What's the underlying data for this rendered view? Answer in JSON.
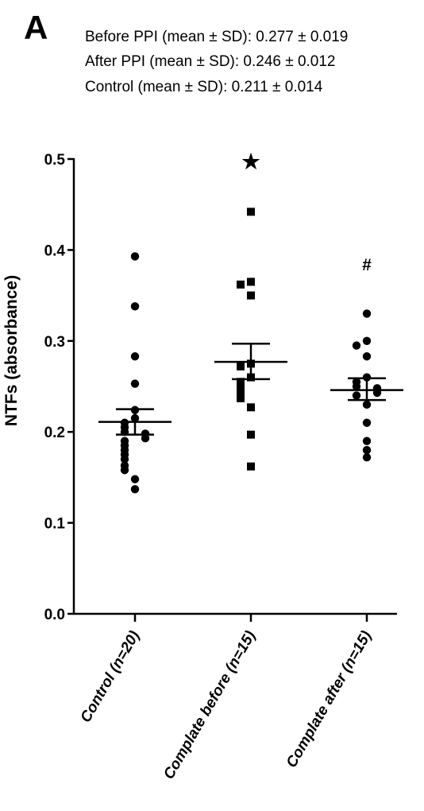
{
  "panel_label": "A",
  "stats_lines": [
    "Before PPI (mean ± SD):  0.277 ± 0.019",
    "After PPI (mean ± SD): 0.246 ± 0.012",
    "Control (mean ± SD): 0.211 ± 0.014"
  ],
  "chart_data": {
    "type": "scatter",
    "ylabel": "NTFs (absorbance)",
    "ylim": [
      0.0,
      0.5
    ],
    "yticks": [
      "0.0",
      "0.1",
      "0.2",
      "0.3",
      "0.4",
      "0.5"
    ],
    "categories": [
      "Control (n=20)",
      "Complate before (n=15)",
      "Complate after (n=15)"
    ],
    "groups": [
      {
        "category": "Control (n=20)",
        "marker": "circle",
        "mean": 0.211,
        "sem_low": 0.197,
        "sem_high": 0.225,
        "significance": "",
        "points": [
          0.393,
          0.338,
          0.283,
          0.253,
          0.224,
          0.215,
          0.21,
          0.205,
          0.2,
          0.198,
          0.193,
          0.19,
          0.185,
          0.18,
          0.175,
          0.17,
          0.163,
          0.158,
          0.148,
          0.137
        ]
      },
      {
        "category": "Complate before (n=15)",
        "marker": "square",
        "mean": 0.277,
        "sem_low": 0.258,
        "sem_high": 0.297,
        "significance": "★",
        "points": [
          0.442,
          0.365,
          0.362,
          0.35,
          0.275,
          0.272,
          0.26,
          0.255,
          0.25,
          0.245,
          0.24,
          0.237,
          0.227,
          0.197,
          0.162
        ]
      },
      {
        "category": "Complate after (n=15)",
        "marker": "circle",
        "mean": 0.246,
        "sem_low": 0.235,
        "sem_high": 0.259,
        "significance": "#",
        "points": [
          0.33,
          0.3,
          0.295,
          0.283,
          0.26,
          0.255,
          0.25,
          0.248,
          0.243,
          0.24,
          0.23,
          0.21,
          0.19,
          0.18,
          0.172
        ]
      }
    ],
    "legend": "none",
    "grid": false
  }
}
